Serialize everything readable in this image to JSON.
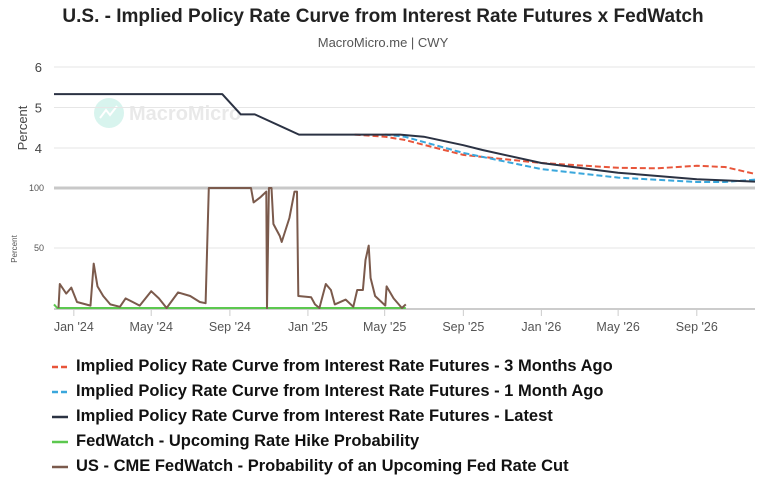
{
  "chart_data": [
    {
      "type": "line",
      "title": "U.S. - Implied Policy Rate Curve from Interest Rate Futures x FedWatch",
      "subtitle": "MacroMicro.me | CWY",
      "ylabel": "Percent",
      "ylim": [
        3,
        6
      ],
      "yticks": [
        "4",
        "5",
        "6"
      ],
      "xlim": [
        "2023-12-01",
        "2026-12-01"
      ],
      "xticks": [
        "Jan '24",
        "May '24",
        "Sep '24",
        "Jan '25",
        "May '25",
        "Sep '25",
        "Jan '26",
        "May '26",
        "Sep '26"
      ],
      "grid": true,
      "series": [
        {
          "name": "Implied Policy Rate Curve from Interest Rate Futures - 3 Months Ago",
          "color": "#e8553a",
          "dash": true,
          "x": [
            "2025-03-15",
            "2025-05-01",
            "2025-06-01",
            "2025-09-01",
            "2026-01-01",
            "2026-05-01",
            "2026-07-01",
            "2026-09-01",
            "2026-10-15",
            "2026-12-01"
          ],
          "y": [
            4.33,
            4.28,
            4.2,
            3.83,
            3.63,
            3.51,
            3.5,
            3.56,
            3.53,
            3.36
          ]
        },
        {
          "name": "Implied Policy Rate Curve from Interest Rate Futures - 1 Month Ago",
          "color": "#3aa7dc",
          "dash": true,
          "x": [
            "2025-05-01",
            "2025-06-01",
            "2025-09-01",
            "2026-01-01",
            "2026-05-01",
            "2026-09-01",
            "2026-10-15",
            "2026-12-01"
          ],
          "y": [
            4.33,
            4.28,
            3.88,
            3.48,
            3.27,
            3.16,
            3.16,
            3.22
          ]
        },
        {
          "name": "Implied Policy Rate Curve from Interest Rate Futures - Latest",
          "color": "#2b3243",
          "dash": false,
          "x": [
            "2023-12-01",
            "2024-08-20",
            "2024-09-18",
            "2024-10-10",
            "2024-12-18",
            "2025-05-25",
            "2025-07-01",
            "2025-09-01",
            "2025-10-01",
            "2026-01-01",
            "2026-05-01",
            "2026-09-01",
            "2026-12-01"
          ],
          "y": [
            5.33,
            5.33,
            4.83,
            4.83,
            4.33,
            4.33,
            4.28,
            4.07,
            3.95,
            3.63,
            3.39,
            3.23,
            3.17
          ]
        }
      ]
    },
    {
      "type": "line",
      "ylabel": "Percent",
      "ylim": [
        0,
        100
      ],
      "yticks": [
        "50",
        "100"
      ],
      "grid": true,
      "series": [
        {
          "name": "FedWatch - Upcoming Rate Hike Probability",
          "color": "#5cc84f",
          "x": [
            "2023-12-01",
            "2023-12-06",
            "2025-06-03"
          ],
          "y": [
            3,
            0,
            0
          ]
        },
        {
          "name": "US - CME FedWatch - Probability of an Upcoming Fed Rate Cut",
          "color": "#7b5a4c",
          "x": [
            "2023-12-08",
            "2023-12-10",
            "2023-12-20",
            "2023-12-28",
            "2024-01-06",
            "2024-01-27",
            "2024-02-01",
            "2024-02-07",
            "2024-02-16",
            "2024-02-27",
            "2024-03-13",
            "2024-03-22",
            "2024-04-02",
            "2024-04-13",
            "2024-05-01",
            "2024-05-13",
            "2024-05-25",
            "2024-06-12",
            "2024-07-01",
            "2024-07-16",
            "2024-07-25",
            "2024-07-30",
            "2024-10-04",
            "2024-10-08",
            "2024-10-18",
            "2024-10-28",
            "2024-10-29",
            "2024-11-01",
            "2024-11-05",
            "2024-11-08",
            "2024-11-18",
            "2024-11-21",
            "2024-12-03",
            "2024-12-11",
            "2024-12-15",
            "2024-12-17",
            "2025-01-06",
            "2025-01-12",
            "2025-01-19",
            "2025-01-29",
            "2025-02-06",
            "2025-02-12",
            "2025-03-01",
            "2025-03-13",
            "2025-03-19",
            "2025-03-28",
            "2025-04-01",
            "2025-04-06",
            "2025-04-09",
            "2025-04-16",
            "2025-05-02",
            "2025-05-04",
            "2025-05-15",
            "2025-05-28",
            "2025-06-03"
          ],
          "y": [
            0,
            20,
            12,
            17,
            5,
            2,
            37,
            18,
            10,
            3,
            1,
            8,
            5,
            2,
            14,
            8,
            0,
            13,
            10,
            5,
            4,
            100,
            100,
            88,
            92,
            97,
            0,
            100,
            100,
            70,
            60,
            55,
            75,
            97,
            97,
            10,
            9,
            3,
            0,
            20,
            15,
            3,
            7,
            1,
            15,
            15,
            40,
            52,
            25,
            10,
            2,
            18,
            8,
            0,
            3
          ]
        }
      ]
    }
  ],
  "watermark": "MacroMicro"
}
